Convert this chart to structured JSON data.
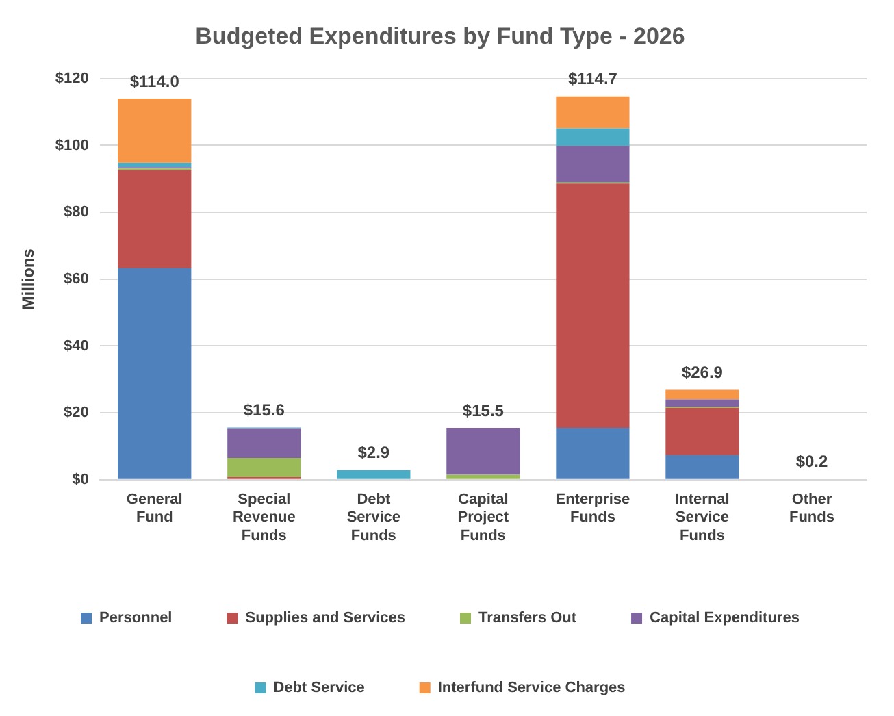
{
  "chart_data": {
    "type": "bar",
    "title": "Budgeted Expenditures by Fund Type - 2026",
    "ylabel": "Millions",
    "categories": [
      "General Fund",
      "Special Revenue Funds",
      "Debt Service Funds",
      "Capital Project Funds",
      "Enterprise Funds",
      "Internal Service Funds",
      "Other Funds"
    ],
    "stacked": true,
    "series": [
      {
        "name": "Personnel",
        "color": "#4f81bd",
        "values": [
          63.3,
          0,
          0,
          0,
          15.5,
          7.4,
          0
        ]
      },
      {
        "name": "Supplies and Services",
        "color": "#c0504d",
        "values": [
          29.3,
          0.8,
          0,
          0,
          73.1,
          14.1,
          0.2
        ]
      },
      {
        "name": "Transfers Out",
        "color": "#9bbb59",
        "values": [
          0.5,
          5.7,
          0,
          1.5,
          0.3,
          0.3,
          0
        ]
      },
      {
        "name": "Capital Expenditures",
        "color": "#8064a2",
        "values": [
          0.4,
          8.9,
          0,
          14.0,
          10.9,
          2.2,
          0
        ]
      },
      {
        "name": "Debt Service",
        "color": "#4bacc6",
        "values": [
          1.3,
          0.2,
          2.9,
          0,
          5.3,
          0,
          0
        ]
      },
      {
        "name": "Interfund Service Charges",
        "color": "#f79646",
        "values": [
          19.2,
          0,
          0,
          0,
          9.6,
          2.9,
          0
        ]
      }
    ],
    "totals": [
      "$114.0",
      "$15.6",
      "$2.9",
      "$15.5",
      "$114.7",
      "$26.9",
      "$0.2"
    ],
    "ylim": [
      0,
      120
    ],
    "yticks": [
      {
        "value": 0,
        "label": "$0"
      },
      {
        "value": 20,
        "label": "$20"
      },
      {
        "value": 40,
        "label": "$40"
      },
      {
        "value": 60,
        "label": "$60"
      },
      {
        "value": 80,
        "label": "$80"
      },
      {
        "value": 100,
        "label": "$100"
      },
      {
        "value": 120,
        "label": "$120"
      }
    ],
    "grid": "y",
    "legend": "bottom"
  }
}
